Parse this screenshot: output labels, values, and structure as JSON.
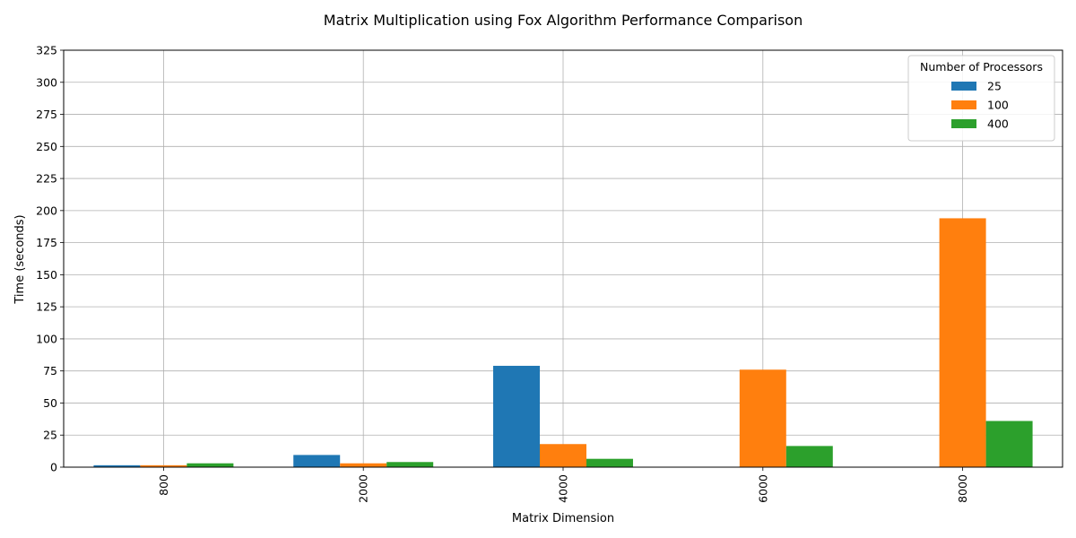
{
  "chart_data": {
    "type": "bar",
    "title": "Matrix Multiplication using Fox Algorithm Performance Comparison",
    "xlabel": "Matrix Dimension",
    "ylabel": "Time (seconds)",
    "categories": [
      "800",
      "2000",
      "4000",
      "6000",
      "8000"
    ],
    "ylim": [
      0,
      325
    ],
    "yticks": [
      0,
      25,
      50,
      75,
      100,
      125,
      150,
      175,
      200,
      225,
      250,
      275,
      300,
      325
    ],
    "grid": true,
    "legend": {
      "title": "Number of Processors",
      "placement": "top-right"
    },
    "series": [
      {
        "name": "25",
        "color": "#1f77b4",
        "values": [
          1.5,
          9.5,
          79,
          0,
          0
        ]
      },
      {
        "name": "100",
        "color": "#ff7f0e",
        "values": [
          1.5,
          3,
          18,
          76,
          194
        ]
      },
      {
        "name": "400",
        "color": "#2ca02c",
        "values": [
          3,
          4,
          6.5,
          16.5,
          36
        ]
      }
    ]
  }
}
